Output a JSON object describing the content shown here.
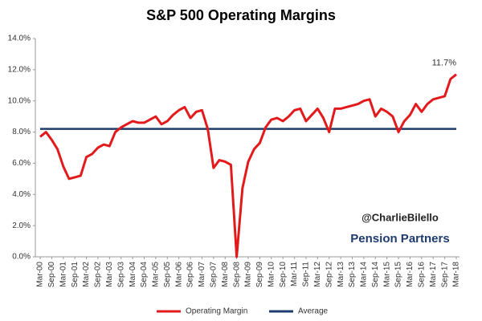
{
  "chart_data": {
    "type": "line",
    "title": "S&P 500 Operating Margins",
    "categories": [
      "Mar-00",
      null,
      "Sep-00",
      null,
      "Mar-01",
      null,
      "Sep-01",
      null,
      "Mar-02",
      null,
      "Sep-02",
      null,
      "Mar-03",
      null,
      "Sep-03",
      null,
      "Mar-04",
      null,
      "Sep-04",
      null,
      "Mar-05",
      null,
      "Sep-05",
      null,
      "Mar-06",
      null,
      "Sep-06",
      null,
      "Mar-07",
      null,
      "Sep-07",
      null,
      "Mar-08",
      null,
      "Sep-08",
      null,
      "Mar-09",
      null,
      "Sep-09",
      null,
      "Mar-10",
      null,
      "Sep-10",
      null,
      "Mar-11",
      null,
      "Sep-11",
      null,
      "Mar-12",
      null,
      "Sep-12",
      null,
      "Mar-13",
      null,
      "Sep-13",
      null,
      "Mar-14",
      null,
      "Sep-14",
      null,
      "Mar-15",
      null,
      "Sep-15",
      null,
      "Mar-16",
      null,
      "Sep-16",
      null,
      "Mar-17",
      null,
      "Sep-17",
      null,
      "Mar-18"
    ],
    "series": [
      {
        "name": "Operating Margin",
        "color": "#e31a1c",
        "values": [
          7.7,
          8.0,
          7.5,
          6.9,
          5.8,
          5.0,
          5.1,
          5.2,
          6.4,
          6.6,
          7.0,
          7.2,
          7.1,
          8.0,
          8.3,
          8.5,
          8.7,
          8.6,
          8.6,
          8.8,
          9.0,
          8.5,
          8.7,
          9.1,
          9.4,
          9.6,
          8.9,
          9.3,
          9.4,
          8.2,
          5.7,
          6.2,
          6.1,
          5.9,
          0.0,
          4.4,
          6.1,
          6.9,
          7.3,
          8.3,
          8.8,
          8.9,
          8.7,
          9.0,
          9.4,
          9.5,
          8.7,
          9.1,
          9.5,
          8.9,
          8.0,
          9.5,
          9.5,
          9.6,
          9.7,
          9.8,
          10.0,
          10.1,
          9.0,
          9.5,
          9.3,
          9.0,
          8.0,
          8.7,
          9.1,
          9.8,
          9.3,
          9.8,
          10.1,
          10.2,
          10.3,
          11.4,
          11.7
        ],
        "value_labels": [
          null,
          null,
          null,
          null,
          null,
          null,
          null,
          null,
          null,
          null,
          null,
          null,
          null,
          null,
          null,
          null,
          null,
          null,
          null,
          null,
          null,
          null,
          null,
          null,
          null,
          null,
          null,
          null,
          null,
          null,
          null,
          null,
          null,
          null,
          null,
          null,
          null,
          null,
          null,
          null,
          null,
          null,
          null,
          null,
          null,
          null,
          null,
          null,
          null,
          null,
          null,
          null,
          null,
          null,
          null,
          null,
          null,
          null,
          null,
          null,
          null,
          null,
          null,
          null,
          null,
          null,
          null,
          null,
          null,
          null,
          null,
          null,
          "11.7%"
        ]
      }
    ],
    "average": {
      "name": "Average",
      "color": "#1f3b6e",
      "value": 8.2
    },
    "ylim": [
      0,
      14
    ],
    "yticks": [
      {
        "value": 0,
        "label": "0.0%"
      },
      {
        "value": 2,
        "label": "2.0%"
      },
      {
        "value": 4,
        "label": "4.0%"
      },
      {
        "value": 6,
        "label": "6.0%"
      },
      {
        "value": 8,
        "label": "8.0%"
      },
      {
        "value": 10,
        "label": "10.0%"
      },
      {
        "value": 12,
        "label": "12.0%"
      },
      {
        "value": 14,
        "label": "14.0%"
      }
    ],
    "annotations": [
      "@CharlieBilello",
      "Pension Partners"
    ]
  }
}
